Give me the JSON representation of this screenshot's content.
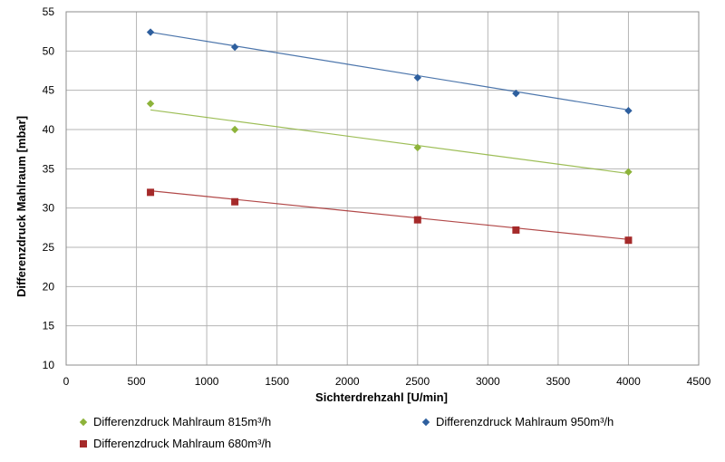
{
  "chart_data": {
    "type": "scatter",
    "xlabel": "Sichterdrehzahl [U/min]",
    "ylabel": "Differenzdruck Mahlraum [mbar]",
    "xlim": [
      0,
      4500
    ],
    "ylim": [
      10,
      55
    ],
    "x_ticks": [
      "0",
      "500",
      "1000",
      "1500",
      "2000",
      "2500",
      "3000",
      "3500",
      "4000",
      "4500"
    ],
    "y_ticks": [
      "10",
      "15",
      "20",
      "25",
      "30",
      "35",
      "40",
      "45",
      "50",
      "55"
    ],
    "grid": true,
    "legend_position": "bottom",
    "series": [
      {
        "name": "Differenzdruck Mahlraum 815m³/h",
        "color": "#8db33a",
        "marker": "diamond",
        "x": [
          600,
          1200,
          2500,
          4000
        ],
        "y": [
          43.3,
          40.0,
          37.7,
          34.6
        ],
        "trendline": [
          [
            600,
            42.5
          ],
          [
            4000,
            34.4
          ]
        ]
      },
      {
        "name": "Differenzdruck Mahlraum 950m³/h",
        "color": "#2e5f9e",
        "marker": "diamond",
        "x": [
          600,
          1200,
          2500,
          3200,
          4000
        ],
        "y": [
          52.4,
          50.5,
          46.6,
          44.6,
          42.4
        ],
        "trendline": [
          [
            600,
            52.4
          ],
          [
            4000,
            42.5
          ]
        ]
      },
      {
        "name": "Differenzdruck Mahlraum 680m³/h",
        "color": "#a52a2a",
        "marker": "square",
        "x": [
          600,
          1200,
          2500,
          3200,
          4000
        ],
        "y": [
          32.0,
          30.8,
          28.5,
          27.2,
          25.9
        ],
        "trendline": [
          [
            600,
            32.2
          ],
          [
            4000,
            26.0
          ]
        ]
      }
    ]
  }
}
